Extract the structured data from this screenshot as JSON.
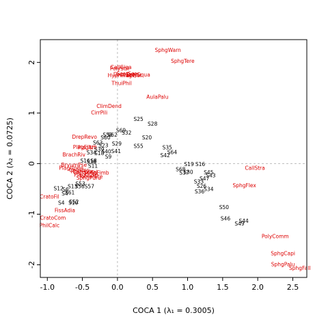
{
  "chart_data": {
    "type": "scatter",
    "xlabel": "COCA 1  (λ₁ = 0.3005)",
    "ylabel": "COCA 2  (λ₂ = 0.0725)",
    "xlim": [
      -1.1,
      2.7
    ],
    "ylim": [
      -2.25,
      2.45
    ],
    "x_ticks": [
      "-1.0",
      "-0.5",
      "0.0",
      "0.5",
      "1.0",
      "1.5",
      "2.0",
      "2.5"
    ],
    "y_ticks": [
      "-2",
      "-1",
      "0",
      "1",
      "2"
    ],
    "reference_lines": {
      "x": 0,
      "y": 0,
      "style": "dashed"
    },
    "colors": {
      "sites": "#000000",
      "species": "#dd0000",
      "reference": "#bbbbbb"
    },
    "series": [
      {
        "kind": "species",
        "points": [
          {
            "label": "SphgWarn",
            "x": 0.72,
            "y": 2.25
          },
          {
            "label": "SphgTere",
            "x": 0.93,
            "y": 2.03
          },
          {
            "label": "CallGiga",
            "x": 0.05,
            "y": 1.91
          },
          {
            "label": "PolyStri",
            "x": 0.03,
            "y": 1.88
          },
          {
            "label": "HypnPrat",
            "x": 0.03,
            "y": 1.75
          },
          {
            "label": "ScorScor",
            "x": 0.15,
            "y": 1.78
          },
          {
            "label": "DrepExan",
            "x": 0.12,
            "y": 1.77
          },
          {
            "label": "PlagElat",
            "x": 0.2,
            "y": 1.75
          },
          {
            "label": "PolySqua",
            "x": 0.3,
            "y": 1.76
          },
          {
            "label": "ThuiPhil",
            "x": 0.06,
            "y": 1.59
          },
          {
            "label": "AulaPalu",
            "x": 0.57,
            "y": 1.32
          },
          {
            "label": "ClimDend",
            "x": -0.12,
            "y": 1.14
          },
          {
            "label": "CirrPili",
            "x": -0.26,
            "y": 1.01
          },
          {
            "label": "DrepRevo",
            "x": -0.47,
            "y": 0.53
          },
          {
            "label": "PlagEllp",
            "x": -0.49,
            "y": 0.33
          },
          {
            "label": "PlagAffi",
            "x": -0.43,
            "y": 0.32
          },
          {
            "label": "BrachRiv",
            "x": -0.62,
            "y": 0.18
          },
          {
            "label": "BryumPse",
            "x": -0.62,
            "y": -0.02
          },
          {
            "label": "PlagUndu",
            "x": -0.66,
            "y": -0.08
          },
          {
            "label": "CalliCor",
            "x": -0.55,
            "y": -0.12
          },
          {
            "label": "RhizPunc",
            "x": -0.5,
            "y": -0.15
          },
          {
            "label": "CampStel",
            "x": -0.46,
            "y": -0.16
          },
          {
            "label": "PlagCusp",
            "x": -0.45,
            "y": -0.22
          },
          {
            "label": "TomeNite",
            "x": -0.38,
            "y": -0.25
          },
          {
            "label": "SphgFimb",
            "x": -0.3,
            "y": -0.18
          },
          {
            "label": "SphgPuru",
            "x": -0.41,
            "y": -0.28
          },
          {
            "label": "CallStra",
            "x": 1.96,
            "y": -0.08
          },
          {
            "label": "SphgFlex",
            "x": 1.81,
            "y": -0.43
          },
          {
            "label": "CratoFil",
            "x": -0.97,
            "y": -0.65
          },
          {
            "label": "FissAdia",
            "x": -0.75,
            "y": -0.92
          },
          {
            "label": "CratoCom",
            "x": -0.92,
            "y": -1.07
          },
          {
            "label": "PhilCalc",
            "x": -0.97,
            "y": -1.22
          },
          {
            "label": "PolyComm",
            "x": 2.25,
            "y": -1.43
          },
          {
            "label": "SphgCapi",
            "x": 2.36,
            "y": -1.77
          },
          {
            "label": "SphgPalu",
            "x": 2.36,
            "y": -1.99
          },
          {
            "label": "SphgFall",
            "x": 2.6,
            "y": -2.06
          }
        ]
      },
      {
        "kind": "site",
        "points": [
          {
            "label": "S25",
            "x": 0.3,
            "y": 0.88
          },
          {
            "label": "S28",
            "x": 0.5,
            "y": 0.79
          },
          {
            "label": "S69",
            "x": 0.05,
            "y": 0.66
          },
          {
            "label": "S32",
            "x": 0.13,
            "y": 0.61
          },
          {
            "label": "S58",
            "x": -0.14,
            "y": 0.57
          },
          {
            "label": "S62",
            "x": -0.07,
            "y": 0.57
          },
          {
            "label": "S60",
            "x": -0.17,
            "y": 0.52
          },
          {
            "label": "S20",
            "x": 0.42,
            "y": 0.52
          },
          {
            "label": "S63",
            "x": -0.28,
            "y": 0.42
          },
          {
            "label": "S29",
            "x": -0.01,
            "y": 0.4
          },
          {
            "label": "S23",
            "x": -0.2,
            "y": 0.36
          },
          {
            "label": "S55",
            "x": 0.3,
            "y": 0.35
          },
          {
            "label": "S35",
            "x": 0.71,
            "y": 0.32
          },
          {
            "label": "S39",
            "x": -0.26,
            "y": 0.28
          },
          {
            "label": "S40",
            "x": -0.16,
            "y": 0.24
          },
          {
            "label": "S41",
            "x": -0.02,
            "y": 0.25
          },
          {
            "label": "S64",
            "x": 0.78,
            "y": 0.23
          },
          {
            "label": "S34",
            "x": -0.37,
            "y": 0.22
          },
          {
            "label": "S18",
            "x": -0.26,
            "y": 0.21
          },
          {
            "label": "S42",
            "x": 0.68,
            "y": 0.17
          },
          {
            "label": "S9",
            "x": -0.13,
            "y": 0.14
          },
          {
            "label": "S16",
            "x": -0.46,
            "y": 0.06
          },
          {
            "label": "S8",
            "x": -0.34,
            "y": 0.06
          },
          {
            "label": "S38",
            "x": -0.37,
            "y": 0.04
          },
          {
            "label": "S19",
            "x": 1.02,
            "y": -0.01
          },
          {
            "label": "S16b",
            "x": 1.18,
            "y": -0.01
          },
          {
            "label": "S11",
            "x": -0.35,
            "y": -0.04
          },
          {
            "label": "S68",
            "x": 0.9,
            "y": -0.11
          },
          {
            "label": "S30",
            "x": 1.01,
            "y": -0.16
          },
          {
            "label": "S37",
            "x": 0.95,
            "y": -0.18
          },
          {
            "label": "S45",
            "x": 1.3,
            "y": -0.17
          },
          {
            "label": "S43",
            "x": 1.33,
            "y": -0.23
          },
          {
            "label": "S47",
            "x": 1.24,
            "y": -0.29
          },
          {
            "label": "S33",
            "x": 1.16,
            "y": -0.35
          },
          {
            "label": "S26",
            "x": 1.2,
            "y": -0.44
          },
          {
            "label": "S34b",
            "x": 1.3,
            "y": -0.5
          },
          {
            "label": "S36",
            "x": 1.17,
            "y": -0.55
          },
          {
            "label": "S53",
            "x": -0.53,
            "y": -0.39
          },
          {
            "label": "S57",
            "x": -0.4,
            "y": -0.45
          },
          {
            "label": "S56",
            "x": -0.54,
            "y": -0.45
          },
          {
            "label": "S13",
            "x": -0.64,
            "y": -0.45
          },
          {
            "label": "S12",
            "x": -0.84,
            "y": -0.49
          },
          {
            "label": "S6",
            "x": -0.74,
            "y": -0.51
          },
          {
            "label": "S61",
            "x": -0.68,
            "y": -0.57
          },
          {
            "label": "S4",
            "x": -0.75,
            "y": -0.59
          },
          {
            "label": "S52",
            "x": -0.62,
            "y": -0.75
          },
          {
            "label": "S4b",
            "x": -0.8,
            "y": -0.77
          },
          {
            "label": "S10",
            "x": -0.63,
            "y": -0.77
          },
          {
            "label": "S50",
            "x": 1.52,
            "y": -0.86
          },
          {
            "label": "S46",
            "x": 1.54,
            "y": -1.08
          },
          {
            "label": "S44",
            "x": 1.8,
            "y": -1.13
          },
          {
            "label": "S49",
            "x": 1.74,
            "y": -1.18
          }
        ]
      }
    ]
  },
  "labels_display": {
    "S16b": "S16",
    "S34b": "S34",
    "S4b": "S4"
  }
}
